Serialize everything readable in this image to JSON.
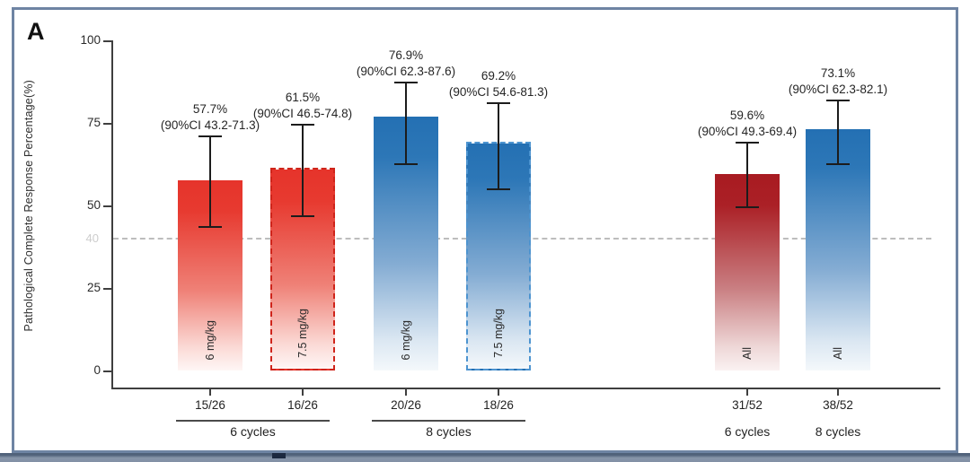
{
  "panel": {
    "label": "A"
  },
  "chart_data": {
    "type": "bar",
    "title": "",
    "xlabel": "",
    "ylabel": "Pathological Complete Response Percentage(%)",
    "ylim": [
      0,
      100
    ],
    "yticks": [
      0,
      25,
      50,
      75,
      100
    ],
    "grid": false,
    "legend": "none",
    "reference_line": {
      "value": 40,
      "label": "40"
    },
    "colors": {
      "red": "#e6342b",
      "dark_red": "#a81b21",
      "blue": "#2470b3",
      "frame": "#6e84a3"
    },
    "bars": [
      {
        "id": "6mgkg-6cycles",
        "dose_label": "6 mg/kg",
        "value": 57.7,
        "ci_low": 43.2,
        "ci_high": 71.3,
        "pct_label": "57.7%",
        "ci_label": "(90%CI 43.2-71.3)",
        "fraction": "15/26",
        "color": "red",
        "dashed": false
      },
      {
        "id": "7-5mgkg-6cycles",
        "dose_label": "7.5 mg/kg",
        "value": 61.5,
        "ci_low": 46.5,
        "ci_high": 74.8,
        "pct_label": "61.5%",
        "ci_label": "(90%CI 46.5-74.8)",
        "fraction": "16/26",
        "color": "red",
        "dashed": true
      },
      {
        "id": "6mgkg-8cycles",
        "dose_label": "6 mg/kg",
        "value": 76.9,
        "ci_low": 62.3,
        "ci_high": 87.6,
        "pct_label": "76.9%",
        "ci_label": "(90%CI 62.3-87.6)",
        "fraction": "20/26",
        "color": "blue",
        "dashed": false
      },
      {
        "id": "7-5mgkg-8cycles",
        "dose_label": "7.5 mg/kg",
        "value": 69.2,
        "ci_low": 54.6,
        "ci_high": 81.3,
        "pct_label": "69.2%",
        "ci_label": "(90%CI 54.6-81.3)",
        "fraction": "18/26",
        "color": "blue",
        "dashed": true
      },
      {
        "id": "all-6cycles",
        "dose_label": "All",
        "value": 59.6,
        "ci_low": 49.3,
        "ci_high": 69.4,
        "pct_label": "59.6%",
        "ci_label": "(90%CI 49.3-69.4)",
        "fraction": "31/52",
        "color": "dark_red",
        "dashed": false
      },
      {
        "id": "all-8cycles",
        "dose_label": "All",
        "value": 73.1,
        "ci_low": 62.3,
        "ci_high": 82.1,
        "pct_label": "73.1%",
        "ci_label": "(90%CI 62.3-82.1)",
        "fraction": "38/52",
        "color": "blue",
        "dashed": false
      }
    ],
    "groups": [
      {
        "label": "6 cycles",
        "bar_indexes": [
          0,
          1
        ],
        "underline": true
      },
      {
        "label": "8 cycles",
        "bar_indexes": [
          2,
          3
        ],
        "underline": true
      },
      {
        "label": "6 cycles",
        "bar_indexes": [
          4
        ],
        "underline": false
      },
      {
        "label": "8 cycles",
        "bar_indexes": [
          5
        ],
        "underline": false
      }
    ]
  }
}
